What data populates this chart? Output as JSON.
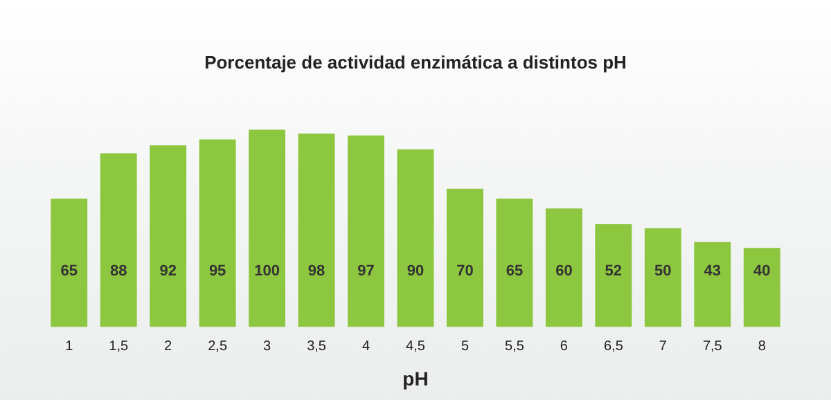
{
  "chart_data": {
    "type": "bar",
    "title": "Porcentaje de actividad enzimática a distintos pH",
    "xlabel": "pH",
    "categories": [
      "1",
      "1,5",
      "2",
      "2,5",
      "3",
      "3,5",
      "4",
      "4,5",
      "5",
      "5,5",
      "6",
      "6,5",
      "7",
      "7,5",
      "8"
    ],
    "values": [
      65,
      88,
      92,
      95,
      100,
      98,
      97,
      90,
      70,
      65,
      60,
      52,
      50,
      43,
      40
    ],
    "color": "#8dc63f",
    "data_labels": true,
    "grid": false,
    "legend": false
  }
}
